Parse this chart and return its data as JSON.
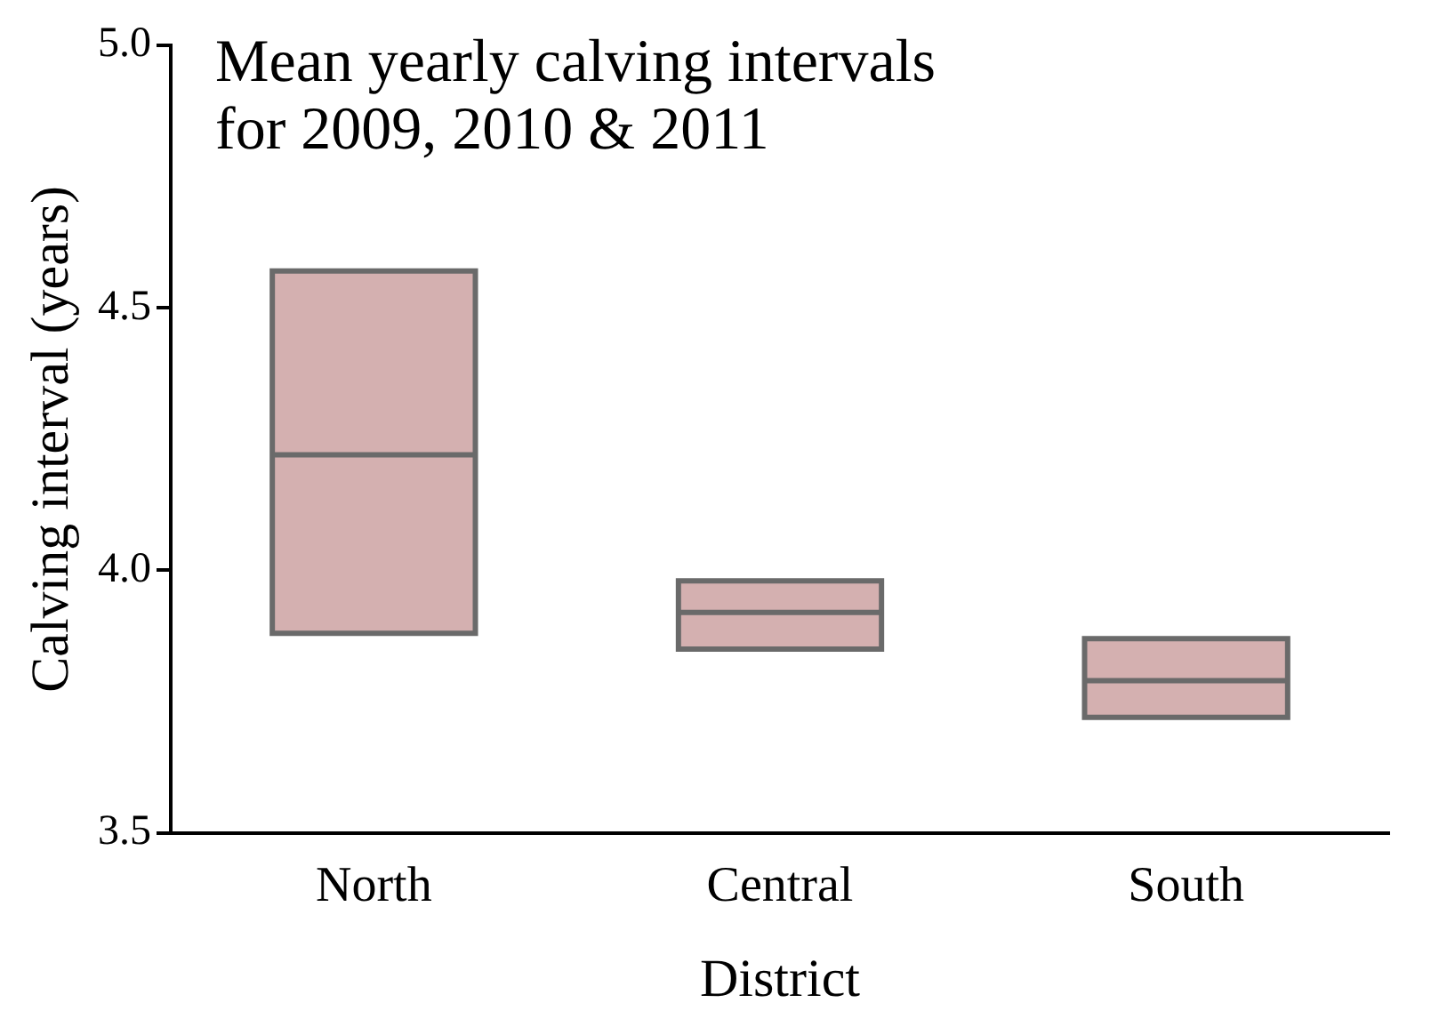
{
  "chart_data": {
    "type": "box",
    "title": "Mean yearly calving intervals\nfor 2009, 2010 & 2011",
    "xlabel": "District",
    "ylabel": "Calving interval (years)",
    "categories": [
      "North",
      "Central",
      "South"
    ],
    "color": "#d4b0b0",
    "boxes": [
      {
        "low": 3.88,
        "q1": 3.88,
        "median": 4.22,
        "q3": 4.57,
        "high": 4.57
      },
      {
        "low": 3.85,
        "q1": 3.85,
        "median": 3.92,
        "q3": 3.98,
        "high": 3.98
      },
      {
        "low": 3.72,
        "q1": 3.72,
        "median": 3.79,
        "q3": 3.87,
        "high": 3.87
      }
    ],
    "ylim": [
      3.5,
      5.0
    ],
    "yticks": [
      {
        "value": 3.5,
        "label": "3.5"
      },
      {
        "value": 4.0,
        "label": "4.0"
      },
      {
        "value": 4.5,
        "label": "4.5"
      },
      {
        "value": 5.0,
        "label": "5.0"
      }
    ],
    "grid": false,
    "legend": false
  }
}
